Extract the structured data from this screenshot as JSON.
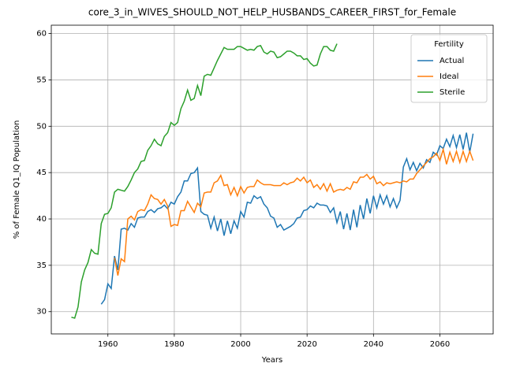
{
  "chart_data": {
    "type": "line",
    "title": "core_3_in_WIVES_SHOULD_NOT_HELP_HUSBANDS_CAREER_FIRST_for_Female",
    "x_label": "Years",
    "y_label": "% of Female Q1_IQ Population",
    "x": [
      1949,
      1950,
      1951,
      1952,
      1953,
      1954,
      1955,
      1956,
      1957,
      1958,
      1959,
      1960,
      1961,
      1962,
      1963,
      1964,
      1965,
      1966,
      1967,
      1968,
      1969,
      1970,
      1971,
      1972,
      1973,
      1974,
      1975,
      1976,
      1977,
      1978,
      1979,
      1980,
      1981,
      1982,
      1983,
      1984,
      1985,
      1986,
      1987,
      1988,
      1989,
      1990,
      1991,
      1992,
      1993,
      1994,
      1995,
      1996,
      1997,
      1998,
      1999,
      2000,
      2001,
      2002,
      2003,
      2004,
      2005,
      2006,
      2007,
      2008,
      2009,
      2010,
      2011,
      2012,
      2013,
      2014,
      2015,
      2016,
      2017,
      2018,
      2019,
      2020,
      2021,
      2022,
      2023,
      2024,
      2025,
      2026,
      2027,
      2028,
      2029,
      2030,
      2031,
      2032,
      2033,
      2034,
      2035,
      2036,
      2037,
      2038,
      2039,
      2040,
      2041,
      2042,
      2043,
      2044,
      2045,
      2046,
      2047,
      2048,
      2049,
      2050,
      2051,
      2052,
      2053,
      2054,
      2055,
      2056,
      2057,
      2058,
      2059,
      2060,
      2061,
      2062,
      2063,
      2064,
      2065,
      2066,
      2067,
      2068,
      2069,
      2070
    ],
    "series": [
      {
        "name": "Actual",
        "color": "#1f77b4",
        "values": [
          null,
          null,
          null,
          null,
          null,
          null,
          null,
          null,
          null,
          30.8,
          31.3,
          33.0,
          32.5,
          36.0,
          34.5,
          38.9,
          39.0,
          38.8,
          39.5,
          39.1,
          40.1,
          40.2,
          40.2,
          40.8,
          41.0,
          40.7,
          41.1,
          41.2,
          41.5,
          41.1,
          41.8,
          41.6,
          42.4,
          42.9,
          44.1,
          44.1,
          44.9,
          45.0,
          45.5,
          40.8,
          40.5,
          40.4,
          39.0,
          40.2,
          38.7,
          40.0,
          38.2,
          39.8,
          38.4,
          39.8,
          39.0,
          40.8,
          40.2,
          41.8,
          41.7,
          42.5,
          42.2,
          42.4,
          41.6,
          41.2,
          40.3,
          40.1,
          39.1,
          39.4,
          38.8,
          39.0,
          39.2,
          39.5,
          40.1,
          40.2,
          40.9,
          41.0,
          41.4,
          41.2,
          41.7,
          41.5,
          41.5,
          41.4,
          40.7,
          41.2,
          39.6,
          40.8,
          38.9,
          40.6,
          38.8,
          41.0,
          39.1,
          41.5,
          40.0,
          42.2,
          40.6,
          42.5,
          41.2,
          42.6,
          41.6,
          42.5,
          41.3,
          42.2,
          41.2,
          42.0,
          45.6,
          46.5,
          45.3,
          46.1,
          45.2,
          46.0,
          45.5,
          46.4,
          46.1,
          47.2,
          46.9,
          47.9,
          47.6,
          48.6,
          47.8,
          49.0,
          47.7,
          49.1,
          47.5,
          49.3,
          47.2,
          49.2
        ]
      },
      {
        "name": "Ideal",
        "color": "#ff7f0e",
        "values": [
          null,
          null,
          null,
          null,
          null,
          null,
          null,
          null,
          null,
          null,
          null,
          null,
          null,
          35.8,
          33.9,
          35.7,
          35.4,
          40.0,
          40.3,
          39.9,
          40.8,
          41.0,
          40.9,
          41.6,
          42.6,
          42.2,
          42.1,
          41.6,
          42.1,
          41.4,
          39.2,
          39.4,
          39.3,
          40.9,
          40.9,
          41.9,
          41.3,
          40.7,
          41.7,
          41.3,
          42.8,
          42.9,
          42.9,
          43.9,
          44.1,
          44.7,
          43.6,
          43.7,
          42.6,
          43.4,
          42.5,
          43.5,
          42.8,
          43.4,
          43.5,
          43.5,
          44.2,
          43.9,
          43.7,
          43.7,
          43.7,
          43.6,
          43.6,
          43.6,
          43.9,
          43.7,
          43.9,
          44.0,
          44.4,
          44.1,
          44.5,
          43.9,
          44.2,
          43.4,
          43.7,
          43.2,
          43.8,
          43.0,
          43.8,
          42.9,
          43.1,
          43.2,
          43.1,
          43.4,
          43.2,
          44.0,
          43.9,
          44.5,
          44.5,
          44.8,
          44.3,
          44.6,
          43.8,
          44.0,
          43.6,
          43.9,
          43.8,
          43.9,
          44.0,
          43.9,
          44.1,
          44.0,
          44.3,
          44.3,
          44.9,
          45.3,
          45.7,
          46.1,
          46.5,
          46.7,
          47.1,
          46.3,
          47.5,
          45.9,
          47.2,
          46.2,
          47.3,
          46.1,
          47.3,
          46.2,
          47.3,
          46.3
        ]
      },
      {
        "name": "Sterile",
        "color": "#2ca02c",
        "values": [
          29.4,
          29.3,
          30.5,
          33.2,
          34.5,
          35.3,
          36.7,
          36.3,
          36.2,
          39.5,
          40.5,
          40.6,
          41.2,
          42.9,
          43.2,
          43.1,
          43.0,
          43.5,
          44.2,
          45.0,
          45.4,
          46.2,
          46.3,
          47.4,
          47.9,
          48.6,
          48.1,
          47.9,
          48.9,
          49.3,
          50.4,
          50.1,
          50.4,
          51.9,
          52.7,
          53.9,
          52.8,
          53.0,
          54.4,
          53.3,
          55.4,
          55.6,
          55.5,
          56.3,
          57.1,
          57.8,
          58.5,
          58.3,
          58.3,
          58.3,
          58.6,
          58.6,
          58.4,
          58.2,
          58.3,
          58.2,
          58.6,
          58.7,
          58.0,
          57.8,
          58.1,
          58.0,
          57.4,
          57.5,
          57.8,
          58.1,
          58.1,
          57.9,
          57.6,
          57.6,
          57.2,
          57.3,
          56.8,
          56.5,
          56.6,
          57.8,
          58.6,
          58.6,
          58.2,
          58.1,
          58.9,
          null,
          null,
          null,
          null,
          null,
          null,
          null,
          null,
          null,
          null,
          null,
          null,
          null,
          null,
          null,
          null,
          null,
          null,
          null,
          null,
          null,
          null,
          null,
          null,
          null,
          null,
          null,
          null,
          null,
          null,
          null,
          null,
          null,
          null,
          null,
          null,
          null,
          null,
          null,
          null,
          null
        ]
      }
    ],
    "xlim": [
      1942.95,
      2076.05
    ],
    "ylim": [
      27.6,
      60.9
    ],
    "xticks": [
      1960,
      1980,
      2000,
      2020,
      2040,
      2060
    ],
    "yticks": [
      30,
      35,
      40,
      45,
      50,
      55,
      60
    ],
    "grid": true,
    "legend_title": "Fertility",
    "legend_loc": "upper right"
  }
}
